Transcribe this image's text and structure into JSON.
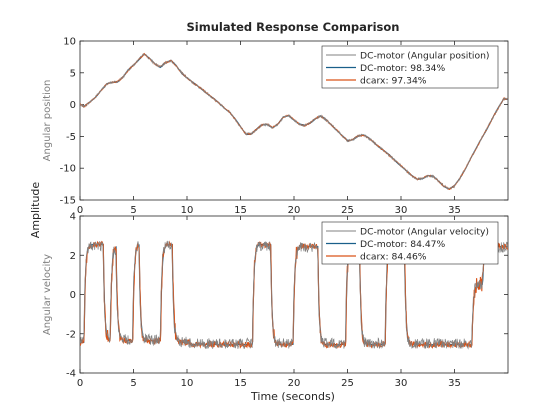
{
  "title": "Simulated Response Comparison",
  "common_ylabel": "Amplitude",
  "xlabel": "Time (seconds)",
  "colors": {
    "measured": "#808080",
    "model1": "#1a5f8a",
    "model2": "#d95319"
  },
  "chart_data": [
    {
      "type": "line",
      "ylabel": "Angular position",
      "xlim": [
        0,
        40
      ],
      "ylim": [
        -15,
        10
      ],
      "xticks": [
        0,
        5,
        10,
        15,
        20,
        25,
        30,
        35
      ],
      "yticks": [
        -15,
        -10,
        -5,
        0,
        5,
        10
      ],
      "legend_position": "top-right",
      "series": [
        {
          "name": "DC-motor (Angular position)",
          "role": "measured",
          "color": "#808080",
          "x": [
            0,
            0.4,
            1,
            1.5,
            2,
            2.5,
            3,
            3.5,
            4,
            4.5,
            5,
            5.5,
            6,
            6.5,
            7,
            7.5,
            8,
            8.5,
            9,
            9.5,
            10,
            10.5,
            11,
            11.5,
            12,
            12.5,
            13,
            13.5,
            14,
            14.5,
            15,
            15.5,
            16,
            16.5,
            17,
            17.5,
            18,
            18.5,
            19,
            19.5,
            20,
            20.5,
            21,
            21.5,
            22,
            22.5,
            23,
            23.5,
            24,
            24.5,
            25,
            25.5,
            26,
            26.5,
            27,
            27.5,
            28,
            28.5,
            29,
            29.5,
            30,
            30.5,
            31,
            31.5,
            32,
            32.5,
            33,
            33.5,
            34,
            34.5,
            35,
            35.5,
            36,
            36.5,
            37,
            37.5,
            38,
            38.5,
            39,
            39.6
          ],
          "y": [
            0,
            -0.3,
            0.5,
            1.3,
            2.3,
            3.2,
            3.5,
            3.6,
            4.3,
            5.4,
            6.2,
            7.1,
            8.0,
            7.2,
            6.4,
            5.9,
            6.6,
            6.9,
            6.1,
            5.0,
            4.2,
            3.5,
            2.9,
            2.3,
            1.6,
            0.9,
            0.2,
            -0.5,
            -1.2,
            -2.3,
            -3.5,
            -4.6,
            -4.6,
            -3.9,
            -3.2,
            -3.1,
            -3.6,
            -3.1,
            -2.0,
            -1.7,
            -2.4,
            -3.1,
            -3.3,
            -2.9,
            -2.2,
            -1.8,
            -2.4,
            -3.2,
            -4.0,
            -4.9,
            -5.7,
            -5.5,
            -4.9,
            -4.8,
            -5.3,
            -6.0,
            -6.7,
            -7.4,
            -8.1,
            -8.9,
            -9.6,
            -10.4,
            -11.2,
            -11.7,
            -11.6,
            -11.2,
            -11.3,
            -12.0,
            -12.8,
            -13.3,
            -12.8,
            -11.6,
            -10.1,
            -8.5,
            -7.0,
            -5.4,
            -3.9,
            -2.3,
            -0.8,
            0.9
          ]
        },
        {
          "name": "DC-motor: 98.34%",
          "role": "model",
          "color": "#1a5f8a"
        },
        {
          "name": "dcarx: 97.34%",
          "role": "model",
          "color": "#d95319"
        }
      ]
    },
    {
      "type": "line",
      "ylabel": "Angular velocity",
      "xlim": [
        0,
        40
      ],
      "ylim": [
        -4,
        4
      ],
      "xticks": [
        0,
        5,
        10,
        15,
        20,
        25,
        30,
        35
      ],
      "yticks": [
        -4,
        -2,
        0,
        2,
        4
      ],
      "legend_position": "top-right",
      "series": [
        {
          "name": "DC-motor (Angular velocity)",
          "role": "measured",
          "color": "#808080",
          "levels": [
            [
              0,
              -2.4
            ],
            [
              0.35,
              2.5
            ],
            [
              2.15,
              -2.3
            ],
            [
              2.8,
              2.4
            ],
            [
              3.35,
              -2.3
            ],
            [
              4.9,
              2.5
            ],
            [
              5.5,
              -2.3
            ],
            [
              7.5,
              2.5
            ],
            [
              8.6,
              -2.4
            ],
            [
              10.2,
              -2.5
            ],
            [
              16.1,
              2.5
            ],
            [
              17.8,
              -2.5
            ],
            [
              19.9,
              2.4
            ],
            [
              22.2,
              -2.5
            ],
            [
              24.8,
              2.5
            ],
            [
              26.1,
              -2.5
            ],
            [
              28.5,
              2.4
            ],
            [
              30.3,
              -2.5
            ],
            [
              36.6,
              0.5
            ],
            [
              37.6,
              2.4
            ]
          ]
        },
        {
          "name": "DC-motor: 84.47%",
          "role": "model",
          "color": "#1a5f8a"
        },
        {
          "name": "dcarx: 84.46%",
          "role": "model",
          "color": "#d95319"
        }
      ]
    }
  ]
}
